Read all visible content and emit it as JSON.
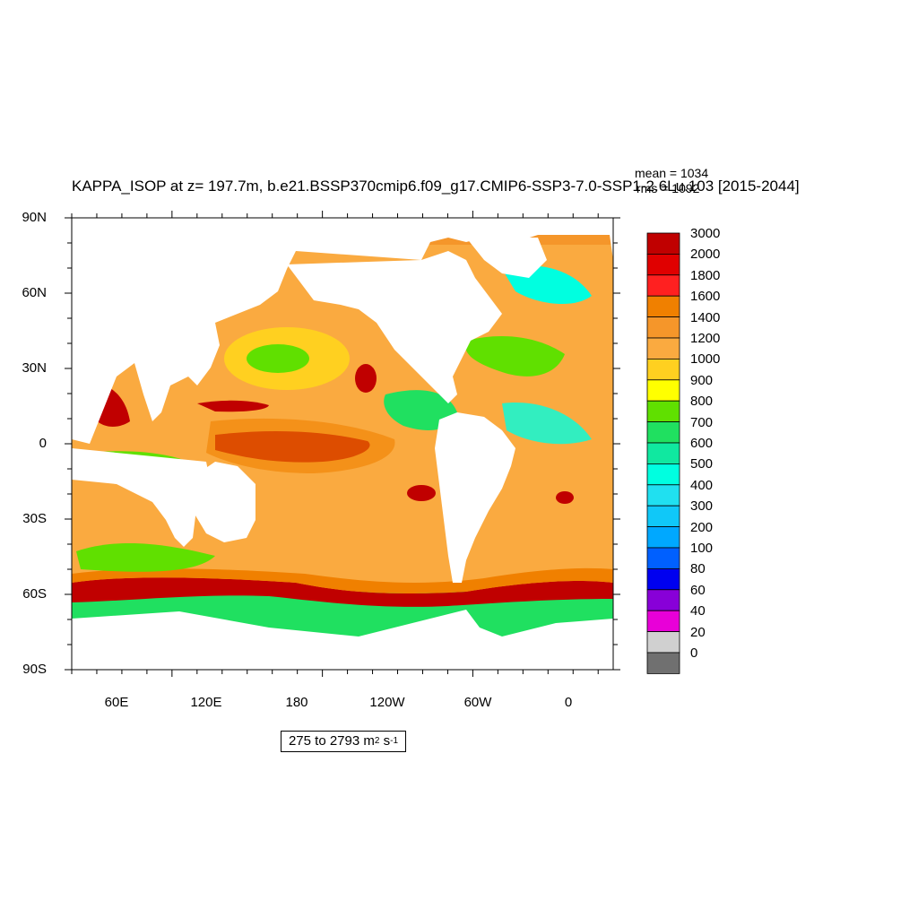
{
  "title": "KAPPA_ISOP at z= 197.7m, b.e21.BSSP370cmip6.f09_g17.CMIP6-SSP3-7.0-SSP1-2.6Lu.103 [2015-2044]",
  "stats": {
    "mean": "mean = 1034",
    "rms": "rms = 1092"
  },
  "y_ticks": [
    "90N",
    "60N",
    "30N",
    "0",
    "30S",
    "60S",
    "90S"
  ],
  "x_ticks": [
    "60E",
    "120E",
    "180",
    "120W",
    "60W",
    "0"
  ],
  "colorbar": {
    "labels": [
      "3000",
      "2000",
      "1800",
      "1600",
      "1400",
      "1200",
      "1000",
      "900",
      "800",
      "700",
      "600",
      "500",
      "400",
      "300",
      "200",
      "100",
      "80",
      "60",
      "40",
      "20",
      "0"
    ],
    "colors": [
      "#c00000",
      "#e00000",
      "#ff2020",
      "#f08000",
      "#f5962a",
      "#faaa40",
      "#ffd020",
      "#ffff00",
      "#60e000",
      "#20e060",
      "#10e8a0",
      "#00ffe0",
      "#20e0f0",
      "#10c8f8",
      "#00a8ff",
      "#0060ff",
      "#0000f0",
      "#8800d8",
      "#e800d8",
      "#d0d0d0",
      "#707070"
    ]
  },
  "range_label": {
    "prefix": "275 to 2793 m",
    "exp1": "2",
    "mid": " s",
    "exp2": "-1"
  },
  "map_colors": {
    "land": "#ffffff",
    "ocean_base": "#faaa40"
  }
}
